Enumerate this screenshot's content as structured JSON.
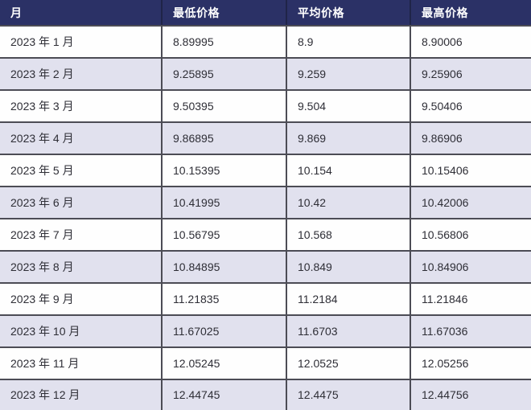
{
  "colors": {
    "header_bg": "#2b3166",
    "header_text": "#ffffff",
    "row_even_bg": "#e1e1ee",
    "row_odd_bg": "#fefefe",
    "border": "#4c4c55",
    "cell_text": "#2e2e36"
  },
  "table": {
    "columns": [
      "月",
      "最低价格",
      "平均价格",
      "最高价格"
    ],
    "rows": [
      [
        "2023 年 1 月",
        "8.89995",
        "8.9",
        "8.90006"
      ],
      [
        "2023 年 2 月",
        "9.25895",
        "9.259",
        "9.25906"
      ],
      [
        "2023 年 3 月",
        "9.50395",
        "9.504",
        "9.50406"
      ],
      [
        "2023 年 4 月",
        "9.86895",
        "9.869",
        "9.86906"
      ],
      [
        "2023 年 5 月",
        "10.15395",
        "10.154",
        "10.15406"
      ],
      [
        "2023 年 6 月",
        "10.41995",
        "10.42",
        "10.42006"
      ],
      [
        "2023 年 7 月",
        "10.56795",
        "10.568",
        "10.56806"
      ],
      [
        "2023 年 8 月",
        "10.84895",
        "10.849",
        "10.84906"
      ],
      [
        "2023 年 9 月",
        "11.21835",
        "11.2184",
        "11.21846"
      ],
      [
        "2023 年 10 月",
        "11.67025",
        "11.6703",
        "11.67036"
      ],
      [
        "2023 年 11 月",
        "12.05245",
        "12.0525",
        "12.05256"
      ],
      [
        "2023 年 12 月",
        "12.44745",
        "12.4475",
        "12.44756"
      ]
    ]
  },
  "chart_data": {
    "type": "table",
    "title": "",
    "columns": [
      "月",
      "最低价格",
      "平均价格",
      "最高价格"
    ],
    "rows": [
      {
        "month": "2023 年 1 月",
        "min": 8.89995,
        "avg": 8.9,
        "max": 8.90006
      },
      {
        "month": "2023 年 2 月",
        "min": 9.25895,
        "avg": 9.259,
        "max": 9.25906
      },
      {
        "month": "2023 年 3 月",
        "min": 9.50395,
        "avg": 9.504,
        "max": 9.50406
      },
      {
        "month": "2023 年 4 月",
        "min": 9.86895,
        "avg": 9.869,
        "max": 9.86906
      },
      {
        "month": "2023 年 5 月",
        "min": 10.15395,
        "avg": 10.154,
        "max": 10.15406
      },
      {
        "month": "2023 年 6 月",
        "min": 10.41995,
        "avg": 10.42,
        "max": 10.42006
      },
      {
        "month": "2023 年 7 月",
        "min": 10.56795,
        "avg": 10.568,
        "max": 10.56806
      },
      {
        "month": "2023 年 8 月",
        "min": 10.84895,
        "avg": 10.849,
        "max": 10.84906
      },
      {
        "month": "2023 年 9 月",
        "min": 11.21835,
        "avg": 11.2184,
        "max": 11.21846
      },
      {
        "month": "2023 年 10 月",
        "min": 11.67025,
        "avg": 11.6703,
        "max": 11.67036
      },
      {
        "month": "2023 年 11 月",
        "min": 12.05245,
        "avg": 12.0525,
        "max": 12.05256
      },
      {
        "month": "2023 年 12 月",
        "min": 12.44745,
        "avg": 12.4475,
        "max": 12.44756
      }
    ]
  }
}
